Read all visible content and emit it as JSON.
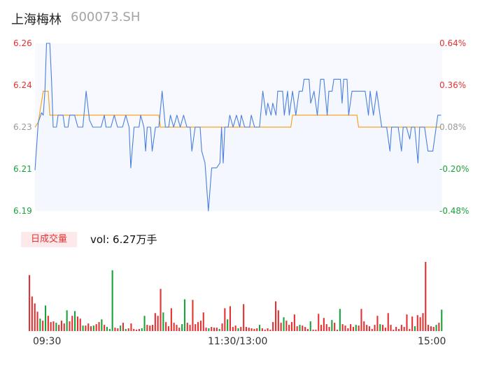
{
  "header": {
    "name": "上海梅林",
    "code": "600073.SH"
  },
  "price_axis": {
    "labels": [
      "6.26",
      "6.24",
      "6.23",
      "6.21",
      "6.19"
    ],
    "colors": [
      "#e23232",
      "#e23232",
      "#999999",
      "#1aa33a",
      "#1aa33a"
    ]
  },
  "pct_axis": {
    "labels": [
      "0.64%",
      "0.36%",
      "0.08%",
      "-0.20%",
      "-0.48%"
    ],
    "colors": [
      "#e23232",
      "#e23232",
      "#999999",
      "#1aa33a",
      "#1aa33a"
    ]
  },
  "volume": {
    "tag": "日成交量",
    "text": "vol: 6.27万手"
  },
  "time_axis": [
    "09:30",
    "11:30/13:00",
    "15:00"
  ],
  "colors": {
    "price_line": "#4a7fe0",
    "avg_line": "#f5a623",
    "area_fill": "#f4f7fe",
    "up": "#e23232",
    "down": "#1aa33a"
  },
  "chart_data": {
    "type": "line",
    "title": "",
    "ylim": [
      6.19,
      6.26
    ],
    "pct_range": [
      -0.48,
      0.64
    ],
    "x_range_minutes": [
      0,
      240
    ],
    "series": [
      {
        "role": "price",
        "points": [
          [
            0,
            6.207
          ],
          [
            2,
            6.227
          ],
          [
            4,
            6.231
          ],
          [
            5,
            6.23
          ],
          [
            6,
            6.24
          ],
          [
            7,
            6.26
          ],
          [
            9,
            6.26
          ],
          [
            10,
            6.245
          ],
          [
            11,
            6.225
          ],
          [
            13,
            6.225
          ],
          [
            14,
            6.23
          ],
          [
            17,
            6.23
          ],
          [
            18,
            6.225
          ],
          [
            20,
            6.225
          ],
          [
            21,
            6.23
          ],
          [
            24,
            6.23
          ],
          [
            26,
            6.225
          ],
          [
            29,
            6.225
          ],
          [
            31,
            6.24
          ],
          [
            33,
            6.228
          ],
          [
            35,
            6.225
          ],
          [
            40,
            6.225
          ],
          [
            42,
            6.23
          ],
          [
            43,
            6.225
          ],
          [
            46,
            6.225
          ],
          [
            48,
            6.23
          ],
          [
            50,
            6.225
          ],
          [
            53,
            6.225
          ],
          [
            55,
            6.23
          ],
          [
            57,
            6.225
          ],
          [
            58,
            6.208
          ],
          [
            60,
            6.225
          ],
          [
            63,
            6.225
          ],
          [
            64,
            6.23
          ],
          [
            66,
            6.225
          ],
          [
            67,
            6.215
          ],
          [
            68,
            6.225
          ],
          [
            70,
            6.225
          ],
          [
            71,
            6.215
          ],
          [
            73,
            6.225
          ],
          [
            75,
            6.225
          ],
          [
            77,
            6.24
          ],
          [
            79,
            6.225
          ],
          [
            81,
            6.225
          ],
          [
            82,
            6.23
          ],
          [
            84,
            6.225
          ],
          [
            86,
            6.23
          ],
          [
            88,
            6.225
          ],
          [
            90,
            6.23
          ],
          [
            92,
            6.225
          ],
          [
            94,
            6.225
          ],
          [
            95,
            6.215
          ],
          [
            97,
            6.225
          ],
          [
            100,
            6.225
          ],
          [
            101,
            6.215
          ],
          [
            103,
            6.21
          ],
          [
            104,
            6.2
          ],
          [
            105,
            6.19
          ],
          [
            107,
            6.208
          ],
          [
            110,
            6.208
          ],
          [
            112,
            6.21
          ],
          [
            113,
            6.225
          ],
          [
            114,
            6.21
          ],
          [
            115,
            6.225
          ],
          [
            117,
            6.225
          ],
          [
            118,
            6.23
          ],
          [
            120,
            6.225
          ],
          [
            122,
            6.23
          ],
          [
            124,
            6.225
          ],
          [
            125,
            6.23
          ],
          [
            127,
            6.225
          ],
          [
            130,
            6.225
          ],
          [
            131,
            6.23
          ],
          [
            133,
            6.225
          ],
          [
            136,
            6.225
          ],
          [
            138,
            6.24
          ],
          [
            140,
            6.23
          ],
          [
            141,
            6.235
          ],
          [
            143,
            6.23
          ],
          [
            144,
            6.235
          ],
          [
            146,
            6.23
          ],
          [
            147,
            6.24
          ],
          [
            150,
            6.24
          ],
          [
            151,
            6.23
          ],
          [
            153,
            6.24
          ],
          [
            154,
            6.23
          ],
          [
            156,
            6.24
          ],
          [
            158,
            6.23
          ],
          [
            160,
            6.24
          ],
          [
            162,
            6.24
          ],
          [
            163,
            6.245
          ],
          [
            166,
            6.245
          ],
          [
            167,
            6.235
          ],
          [
            169,
            6.24
          ],
          [
            171,
            6.23
          ],
          [
            173,
            6.245
          ],
          [
            175,
            6.245
          ],
          [
            177,
            6.23
          ],
          [
            178,
            6.24
          ],
          [
            180,
            6.24
          ],
          [
            181,
            6.245
          ],
          [
            185,
            6.245
          ],
          [
            186,
            6.235
          ],
          [
            187,
            6.245
          ],
          [
            189,
            6.245
          ],
          [
            190,
            6.23
          ],
          [
            192,
            6.24
          ],
          [
            200,
            6.24
          ],
          [
            202,
            6.23
          ],
          [
            203,
            6.24
          ],
          [
            205,
            6.23
          ],
          [
            207,
            6.24
          ],
          [
            210,
            6.225
          ],
          [
            213,
            6.225
          ],
          [
            215,
            6.215
          ],
          [
            216,
            6.225
          ],
          [
            220,
            6.225
          ],
          [
            222,
            6.215
          ],
          [
            223,
            6.225
          ],
          [
            225,
            6.225
          ],
          [
            227,
            6.22
          ],
          [
            228,
            6.225
          ],
          [
            230,
            6.225
          ],
          [
            232,
            6.21
          ],
          [
            233,
            6.225
          ],
          [
            236,
            6.225
          ],
          [
            238,
            6.215
          ],
          [
            241,
            6.215
          ],
          [
            242,
            6.22
          ],
          [
            244,
            6.23
          ],
          [
            246,
            6.23
          ]
        ]
      },
      {
        "role": "average",
        "points": [
          [
            0,
            6.225
          ],
          [
            2,
            6.227
          ],
          [
            5,
            6.24
          ],
          [
            8,
            6.24
          ],
          [
            9,
            6.23
          ],
          [
            75,
            6.23
          ],
          [
            76,
            6.225
          ],
          [
            155,
            6.225
          ],
          [
            156,
            6.23
          ],
          [
            195,
            6.23
          ],
          [
            196,
            6.225
          ],
          [
            246,
            6.225
          ]
        ]
      }
    ],
    "volumes": [
      {
        "v": 81,
        "c": "up"
      },
      {
        "v": 50,
        "c": "up"
      },
      {
        "v": 40,
        "c": "up"
      },
      {
        "v": 28,
        "c": "up"
      },
      {
        "v": 18,
        "c": "down"
      },
      {
        "v": 15,
        "c": "up"
      },
      {
        "v": 37,
        "c": "down"
      },
      {
        "v": 22,
        "c": "up"
      },
      {
        "v": 13,
        "c": "up"
      },
      {
        "v": 14,
        "c": "up"
      },
      {
        "v": 12,
        "c": "down"
      },
      {
        "v": 9,
        "c": "up"
      },
      {
        "v": 15,
        "c": "up"
      },
      {
        "v": 11,
        "c": "up"
      },
      {
        "v": 30,
        "c": "down"
      },
      {
        "v": 14,
        "c": "up"
      },
      {
        "v": 22,
        "c": "up"
      },
      {
        "v": 29,
        "c": "down"
      },
      {
        "v": 21,
        "c": "up"
      },
      {
        "v": 18,
        "c": "up"
      },
      {
        "v": 8,
        "c": "down"
      },
      {
        "v": 8,
        "c": "up"
      },
      {
        "v": 11,
        "c": "up"
      },
      {
        "v": 7,
        "c": "up"
      },
      {
        "v": 8,
        "c": "down"
      },
      {
        "v": 10,
        "c": "up"
      },
      {
        "v": 13,
        "c": "up"
      },
      {
        "v": 17,
        "c": "down"
      },
      {
        "v": 9,
        "c": "up"
      },
      {
        "v": 6,
        "c": "down"
      },
      {
        "v": 3,
        "c": "down"
      },
      {
        "v": 88,
        "c": "down"
      },
      {
        "v": 5,
        "c": "up"
      },
      {
        "v": 4,
        "c": "up"
      },
      {
        "v": 8,
        "c": "down"
      },
      {
        "v": 12,
        "c": "up"
      },
      {
        "v": 3,
        "c": "down"
      },
      {
        "v": 4,
        "c": "up"
      },
      {
        "v": 11,
        "c": "up"
      },
      {
        "v": 3,
        "c": "up"
      },
      {
        "v": 2,
        "c": "up"
      },
      {
        "v": 3,
        "c": "up"
      },
      {
        "v": 4,
        "c": "down"
      },
      {
        "v": 22,
        "c": "down"
      },
      {
        "v": 9,
        "c": "up"
      },
      {
        "v": 8,
        "c": "up"
      },
      {
        "v": 9,
        "c": "up"
      },
      {
        "v": 26,
        "c": "up"
      },
      {
        "v": 22,
        "c": "up"
      },
      {
        "v": 61,
        "c": "up"
      },
      {
        "v": 27,
        "c": "down"
      },
      {
        "v": 13,
        "c": "up"
      },
      {
        "v": 7,
        "c": "up"
      },
      {
        "v": 33,
        "c": "up"
      },
      {
        "v": 12,
        "c": "up"
      },
      {
        "v": 9,
        "c": "up"
      },
      {
        "v": 5,
        "c": "up"
      },
      {
        "v": 10,
        "c": "down"
      },
      {
        "v": 46,
        "c": "down"
      },
      {
        "v": 12,
        "c": "up"
      },
      {
        "v": 9,
        "c": "up"
      },
      {
        "v": 45,
        "c": "up"
      },
      {
        "v": 10,
        "c": "up"
      },
      {
        "v": 13,
        "c": "up"
      },
      {
        "v": 15,
        "c": "up"
      },
      {
        "v": 27,
        "c": "up"
      },
      {
        "v": 5,
        "c": "up"
      },
      {
        "v": 4,
        "c": "down"
      },
      {
        "v": 6,
        "c": "up"
      },
      {
        "v": 5,
        "c": "up"
      },
      {
        "v": 5,
        "c": "up"
      },
      {
        "v": 3,
        "c": "down"
      },
      {
        "v": 11,
        "c": "up"
      },
      {
        "v": 33,
        "c": "up"
      },
      {
        "v": 17,
        "c": "down"
      },
      {
        "v": 36,
        "c": "up"
      },
      {
        "v": 6,
        "c": "up"
      },
      {
        "v": 8,
        "c": "up"
      },
      {
        "v": 4,
        "c": "down"
      },
      {
        "v": 6,
        "c": "up"
      },
      {
        "v": 39,
        "c": "up"
      },
      {
        "v": 6,
        "c": "up"
      },
      {
        "v": 5,
        "c": "up"
      },
      {
        "v": 4,
        "c": "up"
      },
      {
        "v": 3,
        "c": "up"
      },
      {
        "v": 4,
        "c": "up"
      },
      {
        "v": 9,
        "c": "down"
      },
      {
        "v": 4,
        "c": "up"
      },
      {
        "v": 2,
        "c": "up"
      },
      {
        "v": 4,
        "c": "up"
      },
      {
        "v": 2,
        "c": "up"
      },
      {
        "v": 13,
        "c": "up"
      },
      {
        "v": 43,
        "c": "up"
      },
      {
        "v": 30,
        "c": "up"
      },
      {
        "v": 12,
        "c": "up"
      },
      {
        "v": 20,
        "c": "down"
      },
      {
        "v": 15,
        "c": "up"
      },
      {
        "v": 9,
        "c": "up"
      },
      {
        "v": 13,
        "c": "up"
      },
      {
        "v": 24,
        "c": "up"
      },
      {
        "v": 7,
        "c": "up"
      },
      {
        "v": 9,
        "c": "down"
      },
      {
        "v": 8,
        "c": "up"
      },
      {
        "v": 6,
        "c": "up"
      },
      {
        "v": 3,
        "c": "up"
      },
      {
        "v": 14,
        "c": "down"
      },
      {
        "v": 2,
        "c": "up"
      },
      {
        "v": 2,
        "c": "up"
      },
      {
        "v": 25,
        "c": "up"
      },
      {
        "v": 9,
        "c": "up"
      },
      {
        "v": 19,
        "c": "up"
      },
      {
        "v": 10,
        "c": "up"
      },
      {
        "v": 6,
        "c": "up"
      },
      {
        "v": 16,
        "c": "down"
      },
      {
        "v": 12,
        "c": "up"
      },
      {
        "v": 2,
        "c": "up"
      },
      {
        "v": 32,
        "c": "down"
      },
      {
        "v": 10,
        "c": "up"
      },
      {
        "v": 8,
        "c": "up"
      },
      {
        "v": 4,
        "c": "up"
      },
      {
        "v": 10,
        "c": "up"
      },
      {
        "v": 6,
        "c": "up"
      },
      {
        "v": 9,
        "c": "down"
      },
      {
        "v": 8,
        "c": "up"
      },
      {
        "v": 32,
        "c": "up"
      },
      {
        "v": 14,
        "c": "up"
      },
      {
        "v": 9,
        "c": "up"
      },
      {
        "v": 7,
        "c": "up"
      },
      {
        "v": 3,
        "c": "up"
      },
      {
        "v": 9,
        "c": "up"
      },
      {
        "v": 22,
        "c": "up"
      },
      {
        "v": 10,
        "c": "down"
      },
      {
        "v": 9,
        "c": "up"
      },
      {
        "v": 5,
        "c": "up"
      },
      {
        "v": 26,
        "c": "up"
      },
      {
        "v": 9,
        "c": "up"
      },
      {
        "v": 2,
        "c": "up"
      },
      {
        "v": 6,
        "c": "up"
      },
      {
        "v": 3,
        "c": "up"
      },
      {
        "v": 9,
        "c": "up"
      },
      {
        "v": 6,
        "c": "up"
      },
      {
        "v": 24,
        "c": "up"
      },
      {
        "v": 3,
        "c": "up"
      },
      {
        "v": 21,
        "c": "up"
      },
      {
        "v": 7,
        "c": "down"
      },
      {
        "v": 23,
        "c": "up"
      },
      {
        "v": 20,
        "c": "up"
      },
      {
        "v": 26,
        "c": "up"
      },
      {
        "v": 100,
        "c": "up"
      },
      {
        "v": 9,
        "c": "up"
      },
      {
        "v": 7,
        "c": "up"
      },
      {
        "v": 6,
        "c": "up"
      },
      {
        "v": 9,
        "c": "down"
      },
      {
        "v": 12,
        "c": "up"
      },
      {
        "v": 31,
        "c": "down"
      }
    ]
  }
}
